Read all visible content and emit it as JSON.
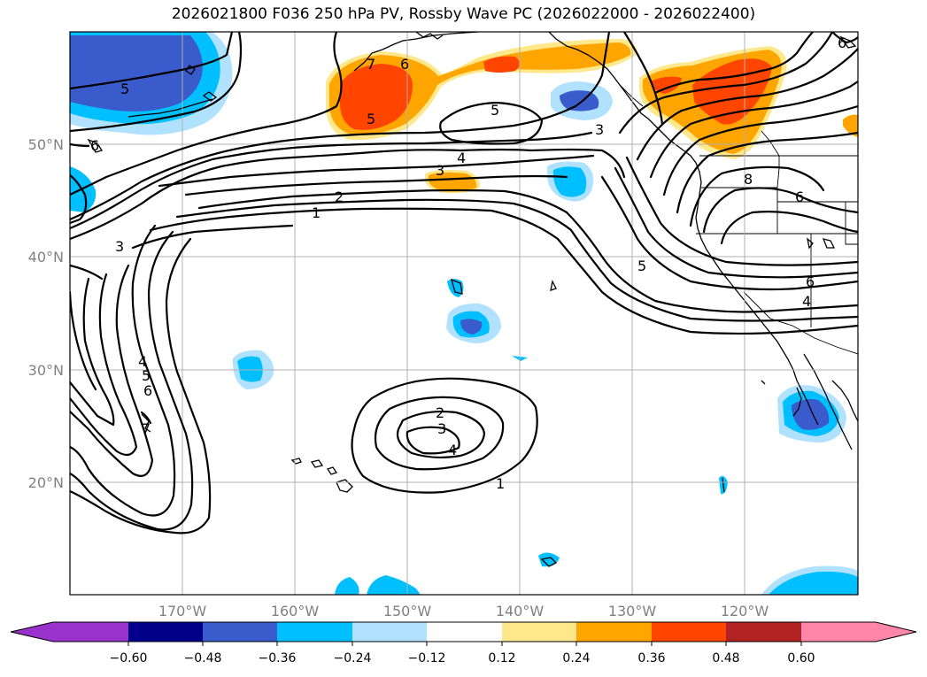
{
  "title": "2026021800 F036 250 hPa PV, Rossby Wave PC (2026022000 - 2026022400)",
  "axes": {
    "lat_labels": [
      "50°N",
      "40°N",
      "30°N",
      "20°N"
    ],
    "lon_labels": [
      "170°W",
      "160°W",
      "150°W",
      "140°W",
      "130°W",
      "120°W"
    ]
  },
  "colorbar": {
    "tick_labels": [
      "−0.60",
      "−0.48",
      "−0.36",
      "−0.24",
      "−0.12",
      "0.12",
      "0.24",
      "0.36",
      "0.48",
      "0.60"
    ],
    "colors": [
      "#9932CC",
      "#00008B",
      "#3A5BCC",
      "#00BFFF",
      "#B0E2FF",
      "#FFFFFF",
      "#FFE88C",
      "#FFA500",
      "#FF4500",
      "#B22222",
      "#FF86A8"
    ]
  },
  "pv_contour_labels": [
    "5",
    "6",
    "7",
    "5",
    "5",
    "6",
    "6",
    "3",
    "4",
    "3",
    "2",
    "1",
    "3",
    "6",
    "8",
    "5",
    "6",
    "4",
    "4",
    "5",
    "6",
    "7",
    "2",
    "3",
    "4",
    "1"
  ],
  "colors": {
    "shade_orange": "#FFA500",
    "shade_red": "#FF4500",
    "shade_lightyellow": "#FFE88C",
    "shade_royal": "#3A5BCC",
    "shade_sky": "#00BFFF",
    "shade_pale": "#B0E2FF"
  }
}
